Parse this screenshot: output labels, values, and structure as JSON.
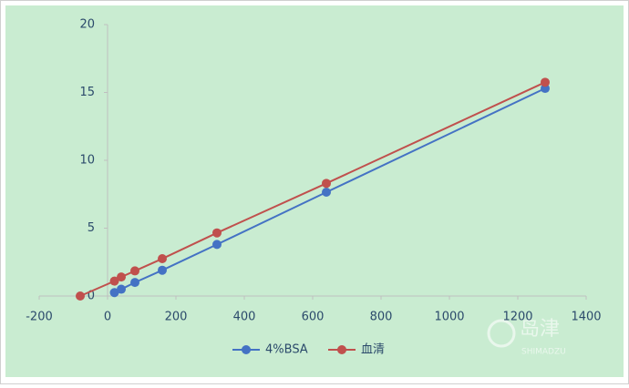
{
  "chart_data": {
    "type": "line",
    "xlim": [
      -200,
      1400
    ],
    "xticks": [
      -200,
      0,
      200,
      400,
      600,
      800,
      1000,
      1200,
      1400
    ],
    "ylim": [
      0,
      20
    ],
    "yticks": [
      0,
      5,
      10,
      15,
      20
    ],
    "grid": false,
    "legend": "bottom",
    "series": [
      {
        "name": "4%BSA",
        "color": "#4472c4",
        "x": [
          20,
          40,
          80,
          160,
          320,
          640,
          1280
        ],
        "values": [
          0.25,
          0.5,
          1.0,
          1.9,
          3.8,
          7.65,
          15.3
        ]
      },
      {
        "name": "血清",
        "color": "#c0504d",
        "x": [
          -80,
          20,
          40,
          80,
          160,
          320,
          640,
          1280
        ],
        "values": [
          0,
          1.1,
          1.4,
          1.85,
          2.75,
          4.65,
          8.3,
          15.75
        ]
      }
    ],
    "watermark": {
      "brand": "岛津",
      "sub": "SHIMADZU"
    }
  }
}
